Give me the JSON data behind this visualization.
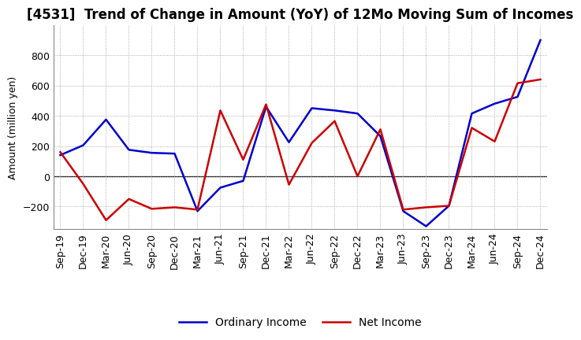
{
  "title": "[4531]  Trend of Change in Amount (YoY) of 12Mo Moving Sum of Incomes",
  "ylabel": "Amount (million yen)",
  "x_labels": [
    "Sep-19",
    "Dec-19",
    "Mar-20",
    "Jun-20",
    "Sep-20",
    "Dec-20",
    "Mar-21",
    "Jun-21",
    "Sep-21",
    "Dec-21",
    "Mar-22",
    "Jun-22",
    "Sep-22",
    "Dec-22",
    "Mar-23",
    "Jun-23",
    "Sep-23",
    "Dec-23",
    "Mar-24",
    "Jun-24",
    "Sep-24",
    "Dec-24"
  ],
  "ordinary_income": [
    140,
    205,
    375,
    175,
    155,
    150,
    -230,
    -75,
    -30,
    460,
    225,
    450,
    435,
    415,
    265,
    -230,
    -330,
    -195,
    415,
    480,
    525,
    900
  ],
  "net_income": [
    160,
    -50,
    -290,
    -150,
    -215,
    -205,
    -220,
    435,
    110,
    475,
    -55,
    220,
    365,
    0,
    310,
    -220,
    -205,
    -195,
    320,
    230,
    615,
    640
  ],
  "ordinary_income_color": "#0000cc",
  "net_income_color": "#cc0000",
  "ylim_min": -350,
  "ylim_max": 1000,
  "yticks": [
    -200,
    0,
    200,
    400,
    600,
    800
  ],
  "legend_ordinary": "Ordinary Income",
  "legend_net": "Net Income",
  "background_color": "#ffffff",
  "grid_color": "#999999",
  "line_width": 1.8,
  "title_fontsize": 12,
  "axis_fontsize": 9,
  "tick_fontsize": 9
}
